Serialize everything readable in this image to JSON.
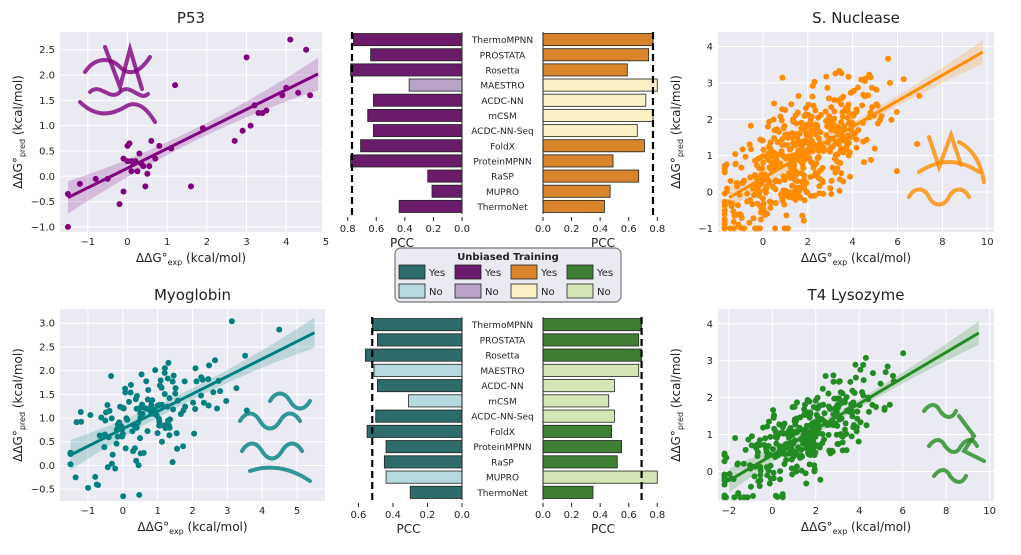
{
  "chart_data": [
    {
      "type": "scatter",
      "id": "p53",
      "title": "P53",
      "xlabel": "ΔΔG°exp (kcal/mol)",
      "ylabel": "ΔΔG°pred (kcal/mol)",
      "xticks": [
        "−1",
        "0",
        "1",
        "2",
        "3",
        "4",
        "5"
      ],
      "yticks": [
        "−1.0",
        "−0.5",
        "0.0",
        "0.5",
        "1.0",
        "1.5",
        "2.0",
        "2.5"
      ],
      "xlim": [
        -1.7,
        4.9
      ],
      "ylim": [
        -1.1,
        2.85
      ],
      "color": "#800080",
      "fit": {
        "x0": -1.5,
        "y0": -0.42,
        "x1": 4.8,
        "y1": 2.02
      },
      "points": [
        [
          -1.5,
          -1.0
        ],
        [
          -1.5,
          -0.35
        ],
        [
          -1.2,
          -0.15
        ],
        [
          -0.8,
          -0.05
        ],
        [
          -0.5,
          -0.05
        ],
        [
          -0.2,
          -0.55
        ],
        [
          -0.1,
          -0.3
        ],
        [
          0.0,
          0.6
        ],
        [
          0.05,
          0.65
        ],
        [
          0.1,
          0.3
        ],
        [
          0.15,
          0.25
        ],
        [
          0.2,
          0.3
        ],
        [
          0.3,
          0.45
        ],
        [
          0.35,
          0.25
        ],
        [
          0.45,
          -0.2
        ],
        [
          0.5,
          0.05
        ],
        [
          0.55,
          0.2
        ],
        [
          0.6,
          0.7
        ],
        [
          0.8,
          0.6
        ],
        [
          0.1,
          0.1
        ],
        [
          -0.1,
          0.35
        ],
        [
          0.0,
          0.3
        ],
        [
          0.25,
          0.1
        ],
        [
          0.4,
          0.2
        ],
        [
          1.2,
          1.8
        ],
        [
          1.1,
          0.55
        ],
        [
          1.6,
          -0.2
        ],
        [
          1.9,
          0.95
        ],
        [
          2.9,
          0.9
        ],
        [
          3.1,
          1.0
        ],
        [
          3.0,
          2.35
        ],
        [
          3.2,
          1.4
        ],
        [
          3.3,
          1.25
        ],
        [
          3.4,
          1.25
        ],
        [
          3.5,
          1.3
        ],
        [
          3.9,
          1.6
        ],
        [
          4.0,
          1.75
        ],
        [
          4.1,
          2.7
        ],
        [
          4.3,
          1.65
        ],
        [
          4.6,
          1.6
        ],
        [
          4.5,
          2.5
        ],
        [
          2.7,
          0.7
        ],
        [
          0.7,
          0.35
        ]
      ]
    },
    {
      "type": "scatter",
      "id": "snuclease",
      "title": "S. Nuclease",
      "xlabel": "ΔΔG°exp (kcal/mol)",
      "ylabel": "ΔΔG°pred (kcal/mol)",
      "xticks": [
        "0",
        "2",
        "4",
        "6",
        "8",
        "10"
      ],
      "yticks": [
        "−1",
        "0",
        "1",
        "2",
        "3",
        "4"
      ],
      "xlim": [
        -2,
        10.3
      ],
      "ylim": [
        -1.1,
        4.4
      ],
      "color": "#ff8c00",
      "fit": {
        "x0": -1.5,
        "y0": -0.15,
        "x1": 9.8,
        "y1": 3.85
      }
    },
    {
      "type": "scatter",
      "id": "myoglobin",
      "title": "Myoglobin",
      "xlabel": "ΔΔG°exp (kcal/mol)",
      "ylabel": "ΔΔG°pred (kcal/mol)",
      "xticks": [
        "−1",
        "0",
        "1",
        "2",
        "3",
        "4",
        "5"
      ],
      "yticks": [
        "−0.5",
        "0.0",
        "0.5",
        "1.0",
        "1.5",
        "2.0",
        "2.5",
        "3.0"
      ],
      "xlim": [
        -1.8,
        5.8
      ],
      "ylim": [
        -0.75,
        3.3
      ],
      "color": "#008080",
      "fit": {
        "x0": -1.5,
        "y0": 0.22,
        "x1": 5.5,
        "y1": 2.8
      }
    },
    {
      "type": "scatter",
      "id": "t4lysozyme",
      "title": "T4 Lysozyme",
      "xlabel": "ΔΔG°exp (kcal/mol)",
      "ylabel": "ΔΔG°pred (kcal/mol)",
      "xticks": [
        "−2",
        "0",
        "2",
        "4",
        "6",
        "8",
        "10"
      ],
      "yticks": [
        "0",
        "1",
        "2",
        "3",
        "4"
      ],
      "xlim": [
        -2.5,
        10.2
      ],
      "ylim": [
        -0.8,
        4.4
      ],
      "color": "#228b22",
      "fit": {
        "x0": -2.0,
        "y0": -0.25,
        "x1": 9.5,
        "y1": 3.75
      }
    },
    {
      "type": "bar",
      "id": "bars_p53",
      "orientation": "horizontal-left",
      "xlabel": "PCC",
      "xticks": [
        "0.8",
        "0.6",
        "0.4",
        "0.2",
        "0.0"
      ],
      "xlim": [
        0,
        0.84
      ],
      "dashed_line": 0.77,
      "values": [
        0.76,
        0.64,
        0.78,
        0.37,
        0.62,
        0.66,
        0.62,
        0.71,
        0.78,
        0.24,
        0.21,
        0.44
      ],
      "unbiased": [
        true,
        true,
        true,
        false,
        true,
        true,
        true,
        true,
        true,
        true,
        true,
        true
      ],
      "color_yes": "#6a1b6a",
      "color_no": "#b8a3c6"
    },
    {
      "type": "bar",
      "id": "bars_snuclease",
      "orientation": "horizontal-right",
      "xlabel": "PCC",
      "xticks": [
        "0.0",
        "0.2",
        "0.4",
        "0.6",
        "0.8"
      ],
      "xlim": [
        0,
        0.84
      ],
      "dashed_line": 0.77,
      "values": [
        0.77,
        0.74,
        0.59,
        0.8,
        0.72,
        0.77,
        0.66,
        0.71,
        0.49,
        0.67,
        0.47,
        0.43
      ],
      "unbiased": [
        true,
        true,
        true,
        false,
        false,
        false,
        false,
        true,
        true,
        true,
        true,
        true
      ],
      "color_yes": "#d8842a",
      "color_no": "#faf0c6"
    },
    {
      "type": "bar",
      "id": "bars_myoglobin",
      "orientation": "horizontal-left",
      "xlabel": "PCC",
      "xticks": [
        "0.6",
        "0.4",
        "0.2",
        "0.0"
      ],
      "xlim": [
        0,
        0.62
      ],
      "dashed_line": 0.52,
      "values": [
        0.52,
        0.49,
        0.56,
        0.51,
        0.49,
        0.31,
        0.5,
        0.55,
        0.44,
        0.45,
        0.44,
        0.3
      ],
      "unbiased": [
        true,
        true,
        true,
        false,
        true,
        false,
        true,
        true,
        true,
        true,
        false,
        true
      ],
      "color_yes": "#2e6b6b",
      "color_no": "#b6d8df"
    },
    {
      "type": "bar",
      "id": "bars_t4",
      "orientation": "horizontal-right",
      "xlabel": "PCC",
      "xticks": [
        "0.0",
        "0.2",
        "0.4",
        "0.6",
        "0.8"
      ],
      "xlim": [
        0,
        0.84
      ],
      "dashed_line": 0.69,
      "values": [
        0.69,
        0.67,
        0.69,
        0.67,
        0.5,
        0.46,
        0.5,
        0.48,
        0.55,
        0.52,
        0.8,
        0.35
      ],
      "unbiased": [
        true,
        true,
        true,
        false,
        false,
        false,
        false,
        true,
        true,
        true,
        false,
        true
      ],
      "color_yes": "#3f7f34",
      "color_no": "#d4e6b5"
    }
  ],
  "methods": [
    "ThermoMPNN",
    "PROSTATA",
    "Rosetta",
    "MAESTRO",
    "ACDC-NN",
    "mCSM",
    "ACDC-NN-Seq",
    "FoldX",
    "ProteinMPNN",
    "RaSP",
    "MUPRO",
    "ThermoNet"
  ],
  "legend": {
    "title": "Unbiased Training",
    "yes": "Yes",
    "no": "No",
    "colors_yes": [
      "#2e6b6b",
      "#6a1b6a",
      "#d8842a",
      "#3f7f34"
    ],
    "colors_no": [
      "#b6d8df",
      "#b8a3c6",
      "#faf0c6",
      "#d4e6b5"
    ]
  }
}
